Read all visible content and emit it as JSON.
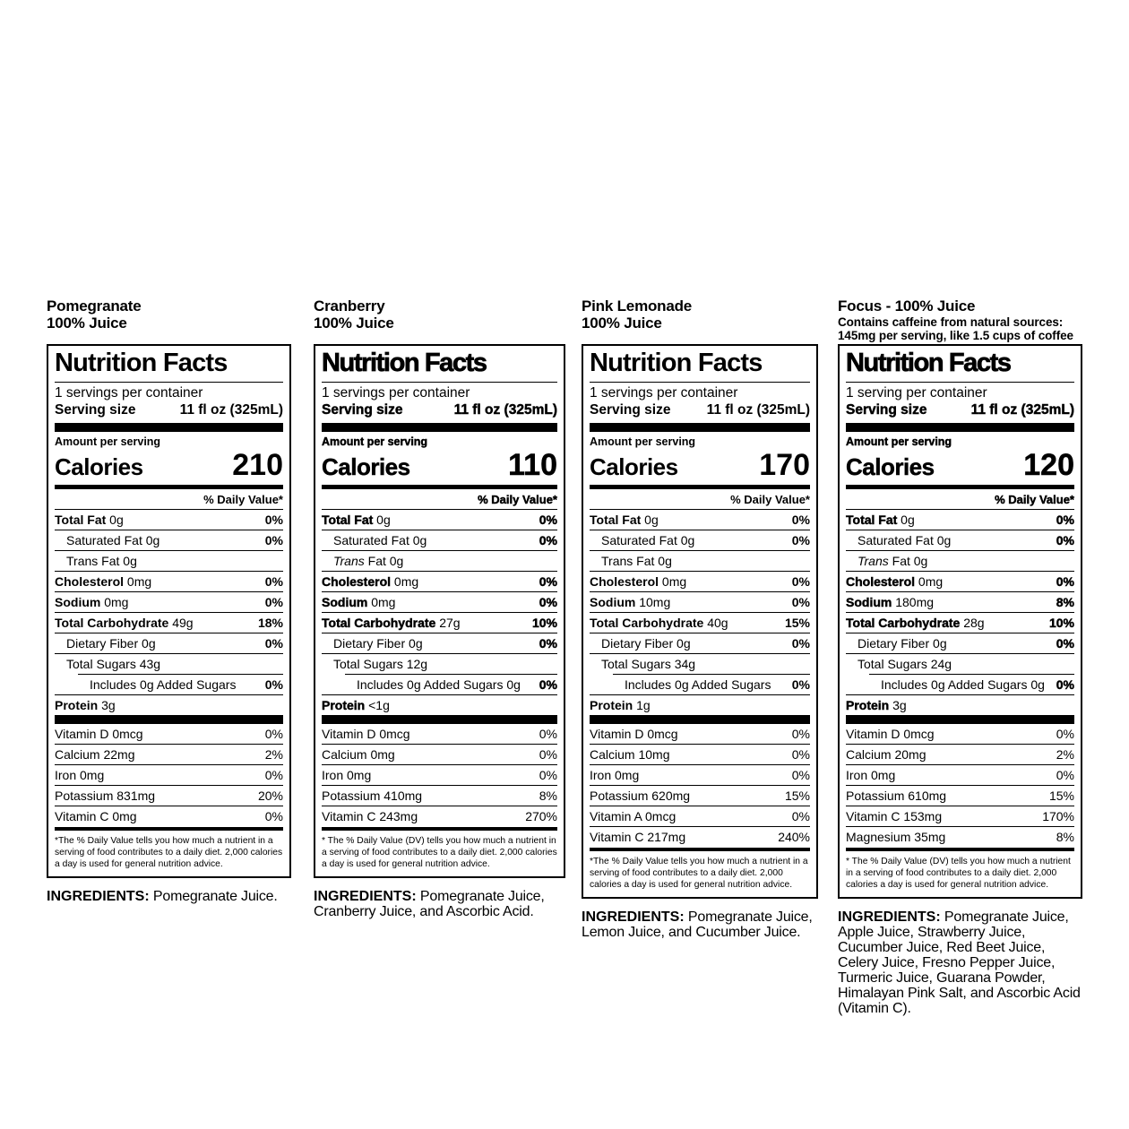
{
  "page": {
    "background_color": "#ffffff",
    "text_color": "#000000"
  },
  "labels": [
    {
      "product": "Pomegranate 100% Juice",
      "variant": "standard",
      "header_lines": [
        "Pomegranate",
        "100% Juice"
      ],
      "title": "Nutrition Facts",
      "servings_per_container": "1 servings per container",
      "serving_size_label": "Serving size",
      "serving_size_value": "11 fl oz (325mL)",
      "amount_per_serving": "Amount per serving",
      "calories_label": "Calories",
      "calories_value": "210",
      "daily_value_header": "% Daily Value*",
      "rows": [
        {
          "t": "Total Fat",
          "v": "0g",
          "dv": "0%",
          "b": true,
          "ind": 0
        },
        {
          "t": "Saturated Fat",
          "v": "0g",
          "dv": "0%",
          "ind": 1
        },
        {
          "t": "Trans Fat",
          "v": "0g",
          "dv": "",
          "ind": 1
        },
        {
          "t": "Cholesterol",
          "v": "0mg",
          "dv": "0%",
          "b": true,
          "ind": 0
        },
        {
          "t": "Sodium",
          "v": "0mg",
          "dv": "0%",
          "b": true,
          "ind": 0
        },
        {
          "t": "Total Carbohydrate",
          "v": "49g",
          "dv": "18%",
          "b": true,
          "ind": 0
        },
        {
          "t": "Dietary Fiber",
          "v": "0g",
          "dv": "0%",
          "ind": 1
        },
        {
          "t": "Total Sugars",
          "v": "43g",
          "dv": "",
          "ind": 1
        },
        {
          "t": "Includes 0g Added Sugars",
          "v": "",
          "dv": "0%",
          "ind": 2
        },
        {
          "t": "Protein",
          "v": "3g",
          "dv": "",
          "b": true,
          "ind": 0
        }
      ],
      "vitamins": [
        {
          "t": "Vitamin D",
          "v": "0mcg",
          "dv": "0%"
        },
        {
          "t": "Calcium",
          "v": "22mg",
          "dv": "2%"
        },
        {
          "t": "Iron",
          "v": "0mg",
          "dv": "0%"
        },
        {
          "t": "Potassium",
          "v": "831mg",
          "dv": "20%"
        },
        {
          "t": "Vitamin C",
          "v": "0mg",
          "dv": "0%"
        }
      ],
      "footnote": "*The % Daily Value tells you how much a nutrient in a serving of food contributes to a daily diet. 2,000 calories a day is used for general nutrition advice.",
      "ingredients_label": "INGREDIENTS:",
      "ingredients": "Pomegranate Juice."
    },
    {
      "product": "Cranberry 100% Juice",
      "variant": "heavy",
      "header_lines": [
        "Cranberry",
        "100% Juice"
      ],
      "title": "Nutrition Facts",
      "servings_per_container": "1 servings per container",
      "serving_size_label": "Serving size",
      "serving_size_value": "11 fl oz (325mL)",
      "amount_per_serving": "Amount per serving",
      "calories_label": "Calories",
      "calories_value": "110",
      "daily_value_header": "% Daily Value*",
      "rows": [
        {
          "t": "Total Fat",
          "v": "0g",
          "dv": "0%",
          "b": true,
          "ind": 0
        },
        {
          "t": "Saturated Fat",
          "v": "0g",
          "dv": "0%",
          "ind": 1
        },
        {
          "t": "Trans Fat",
          "v": "0g",
          "dv": "",
          "ind": 1,
          "it": true
        },
        {
          "t": "Cholesterol",
          "v": "0mg",
          "dv": "0%",
          "b": true,
          "ind": 0
        },
        {
          "t": "Sodium",
          "v": "0mg",
          "dv": "0%",
          "b": true,
          "ind": 0
        },
        {
          "t": "Total Carbohydrate",
          "v": "27g",
          "dv": "10%",
          "b": true,
          "ind": 0
        },
        {
          "t": "Dietary Fiber",
          "v": "0g",
          "dv": "0%",
          "ind": 1
        },
        {
          "t": "Total Sugars",
          "v": "12g",
          "dv": "",
          "ind": 1
        },
        {
          "t": "Includes 0g Added Sugars",
          "v": "0g",
          "dv": "0%",
          "ind": 2
        },
        {
          "t": "Protein",
          "v": "<1g",
          "dv": "",
          "b": true,
          "ind": 0
        }
      ],
      "vitamins": [
        {
          "t": "Vitamin D",
          "v": "0mcg",
          "dv": "0%"
        },
        {
          "t": "Calcium",
          "v": "0mg",
          "dv": "0%"
        },
        {
          "t": "Iron",
          "v": "0mg",
          "dv": "0%"
        },
        {
          "t": "Potassium",
          "v": "410mg",
          "dv": "8%"
        },
        {
          "t": "Vitamin C",
          "v": "243mg",
          "dv": "270%"
        }
      ],
      "footnote": "* The % Daily Value (DV) tells you how much a nutrient in a serving of food contributes to a daily diet. 2,000 calories a day is used for general nutrition advice.",
      "ingredients_label": "INGREDIENTS:",
      "ingredients": "Pomegranate Juice, Cranberry Juice, and Ascorbic Acid."
    },
    {
      "product": "Pink Lemonade 100% Juice",
      "variant": "standard",
      "header_lines": [
        "Pink Lemonade",
        "100% Juice"
      ],
      "title": "Nutrition Facts",
      "servings_per_container": "1 servings per container",
      "serving_size_label": "Serving size",
      "serving_size_value": "11 fl oz (325mL)",
      "amount_per_serving": "Amount per serving",
      "calories_label": "Calories",
      "calories_value": "170",
      "daily_value_header": "% Daily Value*",
      "rows": [
        {
          "t": "Total Fat",
          "v": "0g",
          "dv": "0%",
          "b": true,
          "ind": 0
        },
        {
          "t": "Saturated Fat",
          "v": "0g",
          "dv": "0%",
          "ind": 1
        },
        {
          "t": "Trans Fat",
          "v": "0g",
          "dv": "",
          "ind": 1
        },
        {
          "t": "Cholesterol",
          "v": "0mg",
          "dv": "0%",
          "b": true,
          "ind": 0
        },
        {
          "t": "Sodium",
          "v": "10mg",
          "dv": "0%",
          "b": true,
          "ind": 0
        },
        {
          "t": "Total Carbohydrate",
          "v": "40g",
          "dv": "15%",
          "b": true,
          "ind": 0
        },
        {
          "t": "Dietary Fiber",
          "v": "0g",
          "dv": "0%",
          "ind": 1
        },
        {
          "t": "Total Sugars",
          "v": "34g",
          "dv": "",
          "ind": 1
        },
        {
          "t": "Includes 0g Added Sugars",
          "v": "",
          "dv": "0%",
          "ind": 2
        },
        {
          "t": "Protein",
          "v": "1g",
          "dv": "",
          "b": true,
          "ind": 0
        }
      ],
      "vitamins": [
        {
          "t": "Vitamin D",
          "v": "0mcg",
          "dv": "0%"
        },
        {
          "t": "Calcium",
          "v": "10mg",
          "dv": "0%"
        },
        {
          "t": "Iron",
          "v": "0mg",
          "dv": "0%"
        },
        {
          "t": "Potassium",
          "v": "620mg",
          "dv": "15%"
        },
        {
          "t": "Vitamin A",
          "v": "0mcg",
          "dv": "0%"
        },
        {
          "t": "Vitamin C",
          "v": "217mg",
          "dv": "240%"
        }
      ],
      "footnote": "*The % Daily Value tells you how much a nutrient in a serving of food contributes to a daily diet. 2,000 calories a day is used for general nutrition advice.",
      "ingredients_label": "INGREDIENTS:",
      "ingredients": "Pomegranate Juice, Lemon Juice, and Cucumber Juice."
    },
    {
      "product": "Focus - 100% Juice",
      "variant": "heavy",
      "header_lines": [
        "Focus - 100% Juice",
        "Contains caffeine from natural sources:",
        "145mg per serving, like 1.5 cups of coffee"
      ],
      "title": "Nutrition Facts",
      "servings_per_container": "1 serving per container",
      "serving_size_label": "Serving size",
      "serving_size_value": "11 fl oz (325mL)",
      "amount_per_serving": "Amount per serving",
      "calories_label": "Calories",
      "calories_value": "120",
      "daily_value_header": "% Daily Value*",
      "rows": [
        {
          "t": "Total Fat",
          "v": "0g",
          "dv": "0%",
          "b": true,
          "ind": 0
        },
        {
          "t": "Saturated Fat",
          "v": "0g",
          "dv": "0%",
          "ind": 1
        },
        {
          "t": "Trans Fat",
          "v": "0g",
          "dv": "",
          "ind": 1,
          "it": true
        },
        {
          "t": "Cholesterol",
          "v": "0mg",
          "dv": "0%",
          "b": true,
          "ind": 0
        },
        {
          "t": "Sodium",
          "v": "180mg",
          "dv": "8%",
          "b": true,
          "ind": 0
        },
        {
          "t": "Total Carbohydrate",
          "v": "28g",
          "dv": "10%",
          "b": true,
          "ind": 0
        },
        {
          "t": "Dietary Fiber",
          "v": "0g",
          "dv": "0%",
          "ind": 1
        },
        {
          "t": "Total Sugars",
          "v": "24g",
          "dv": "",
          "ind": 1
        },
        {
          "t": "Includes 0g Added Sugars",
          "v": "0g",
          "dv": "0%",
          "ind": 2
        },
        {
          "t": "Protein",
          "v": "3g",
          "dv": "",
          "b": true,
          "ind": 0
        }
      ],
      "vitamins": [
        {
          "t": "Vitamin D",
          "v": "0mcg",
          "dv": "0%"
        },
        {
          "t": "Calcium",
          "v": "20mg",
          "dv": "2%"
        },
        {
          "t": "Iron",
          "v": "0mg",
          "dv": "0%"
        },
        {
          "t": "Potassium",
          "v": "610mg",
          "dv": "15%"
        },
        {
          "t": "Vitamin C",
          "v": "153mg",
          "dv": "170%"
        },
        {
          "t": "Magnesium",
          "v": "35mg",
          "dv": "8%"
        }
      ],
      "footnote": "* The % Daily Value (DV) tells you how much a nutrient in a serving of food contributes to a daily diet. 2,000 calories a day is used for general nutrition advice.",
      "ingredients_label": "INGREDIENTS:",
      "ingredients": "Pomegranate Juice, Apple Juice, Strawberry Juice, Cucumber Juice, Red Beet Juice, Celery Juice, Fresno Pepper Juice, Turmeric Juice, Guarana Powder, Himalayan Pink Salt, and Ascorbic Acid (Vitamin C)."
    }
  ]
}
